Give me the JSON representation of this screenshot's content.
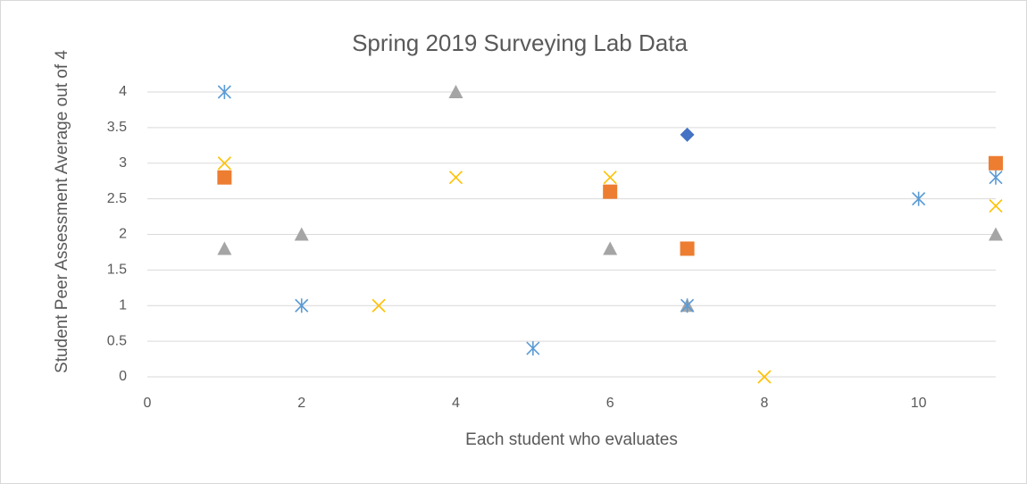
{
  "chart_data": {
    "type": "scatter",
    "title": "Spring 2019 Surveying Lab Data",
    "xlabel": "Each student who evaluates",
    "ylabel": "Student Peer Assessment Average out of 4",
    "xlim": [
      0,
      11
    ],
    "xticks": [
      0,
      2,
      4,
      6,
      8,
      10
    ],
    "ylim": [
      0,
      4
    ],
    "yticks": [
      0,
      0.5,
      1,
      1.5,
      2,
      2.5,
      3,
      3.5,
      4
    ],
    "grid": true,
    "series": [
      {
        "color": "#4472c4",
        "marker": "diamond",
        "x": [
          7
        ],
        "values": [
          3.4
        ]
      },
      {
        "color": "#ed7d31",
        "marker": "square",
        "x": [
          1,
          6,
          7,
          11
        ],
        "values": [
          2.8,
          2.6,
          1.8,
          3
        ]
      },
      {
        "color": "#a5a5a5",
        "marker": "triangle",
        "x": [
          1,
          2,
          4,
          6,
          7,
          11
        ],
        "values": [
          1.8,
          2,
          4,
          1.8,
          1,
          2
        ]
      },
      {
        "color": "#ffc000",
        "marker": "x",
        "x": [
          1,
          3,
          4,
          6,
          8,
          11
        ],
        "values": [
          3,
          1,
          2.8,
          2.8,
          0,
          2.4
        ]
      },
      {
        "color": "#5b9bd5",
        "marker": "asterisk",
        "x": [
          1,
          2,
          5,
          7,
          10,
          11
        ],
        "values": [
          4,
          1,
          0.4,
          1,
          2.5,
          2.8
        ]
      }
    ]
  }
}
